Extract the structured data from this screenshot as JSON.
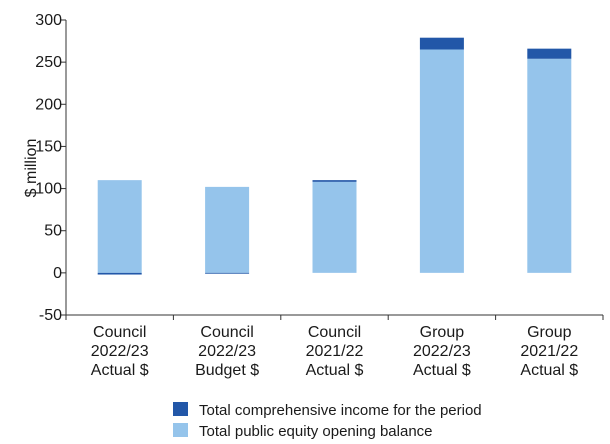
{
  "chart_data": {
    "type": "bar",
    "stacked": true,
    "title": "",
    "xlabel": "",
    "ylabel": "$ million",
    "ylim": [
      -50,
      300
    ],
    "yticks": [
      -50,
      0,
      50,
      100,
      150,
      200,
      250,
      300
    ],
    "grid": false,
    "legend_position": "bottom",
    "categories": [
      [
        "Council",
        "2022/23",
        "Actual $"
      ],
      [
        "Council",
        "2022/23",
        "Budget $"
      ],
      [
        "Council",
        "2021/22",
        "Actual $"
      ],
      [
        "Group",
        "2022/23",
        "Actual $"
      ],
      [
        "Group",
        "2021/22",
        "Actual $"
      ]
    ],
    "series": [
      {
        "name": "Total public equity opening balance",
        "color": "#95c4eb",
        "values": [
          110,
          102,
          108,
          265,
          254
        ]
      },
      {
        "name": "Total comprehensive income for the period",
        "color": "#2257a8",
        "values": [
          -2,
          -1,
          2,
          14,
          12
        ]
      }
    ],
    "legend_order": [
      1,
      0
    ]
  }
}
